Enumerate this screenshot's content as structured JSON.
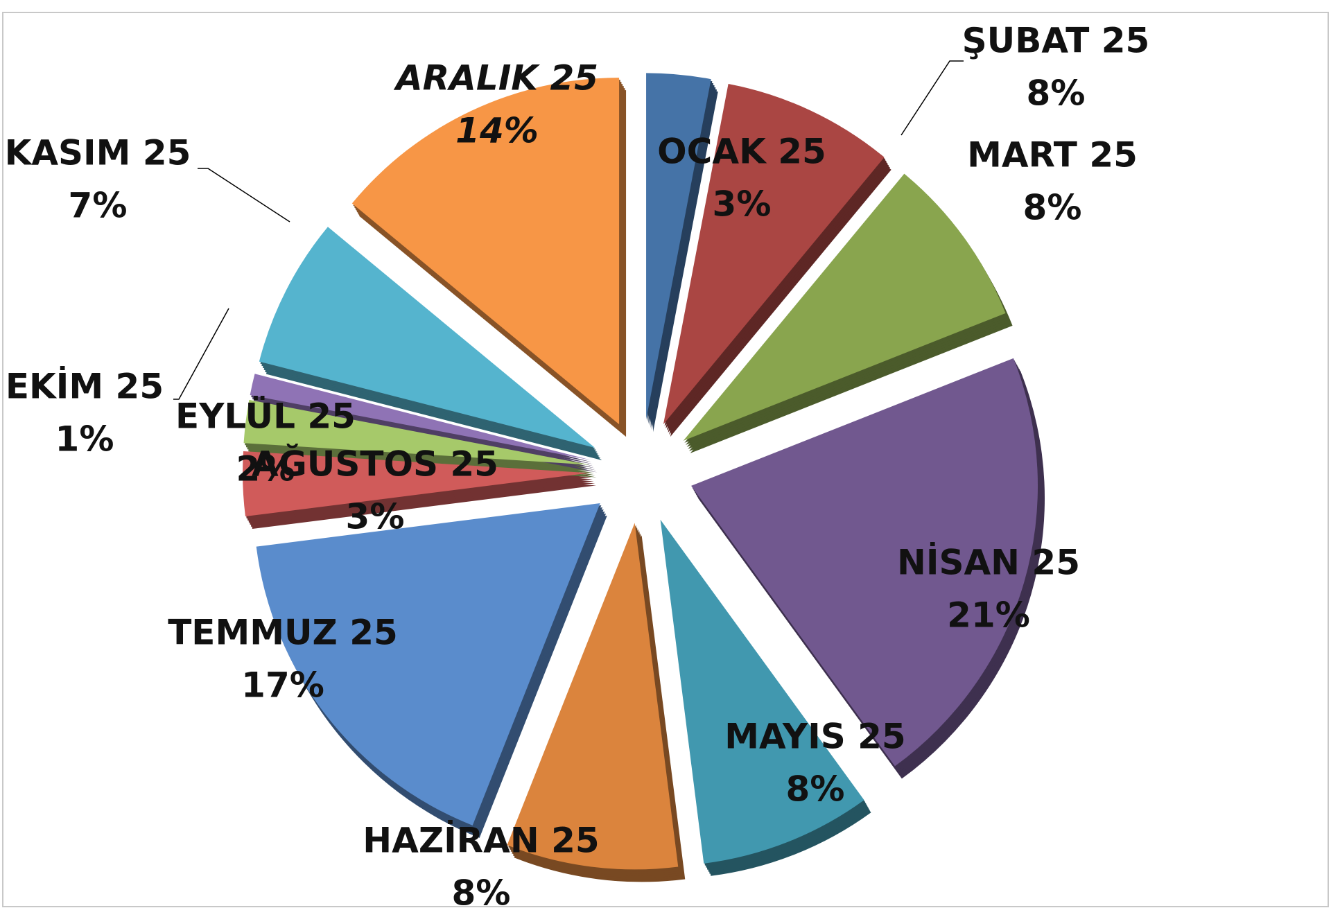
{
  "chart_data": {
    "type": "pie",
    "categories": [
      "OCAK 25",
      "ŞUBAT 25",
      "MART 25",
      "NİSAN 25",
      "MAYIS 25",
      "HAZİRAN 25",
      "TEMMUZ 25",
      "AĞUSTOS 25",
      "EYLÜL 25",
      "EKİM 25",
      "KASIM 25",
      "ARALIK 25"
    ],
    "values": [
      3,
      8,
      8,
      21,
      8,
      8,
      17,
      3,
      2,
      1,
      7,
      14
    ],
    "value_labels": [
      "3%",
      "8%",
      "8%",
      "21%",
      "8%",
      "8%",
      "17%",
      "3%",
      "2%",
      "1%",
      "7%",
      "14%"
    ],
    "colors": [
      "#4573a7",
      "#aa4643",
      "#89a54e",
      "#71588f",
      "#4198af",
      "#db843d",
      "#5a8ccc",
      "#d05b5a",
      "#a6c96a",
      "#8f73b5",
      "#55b4ce",
      "#f79646"
    ],
    "highlight_color": "#ff0000"
  }
}
